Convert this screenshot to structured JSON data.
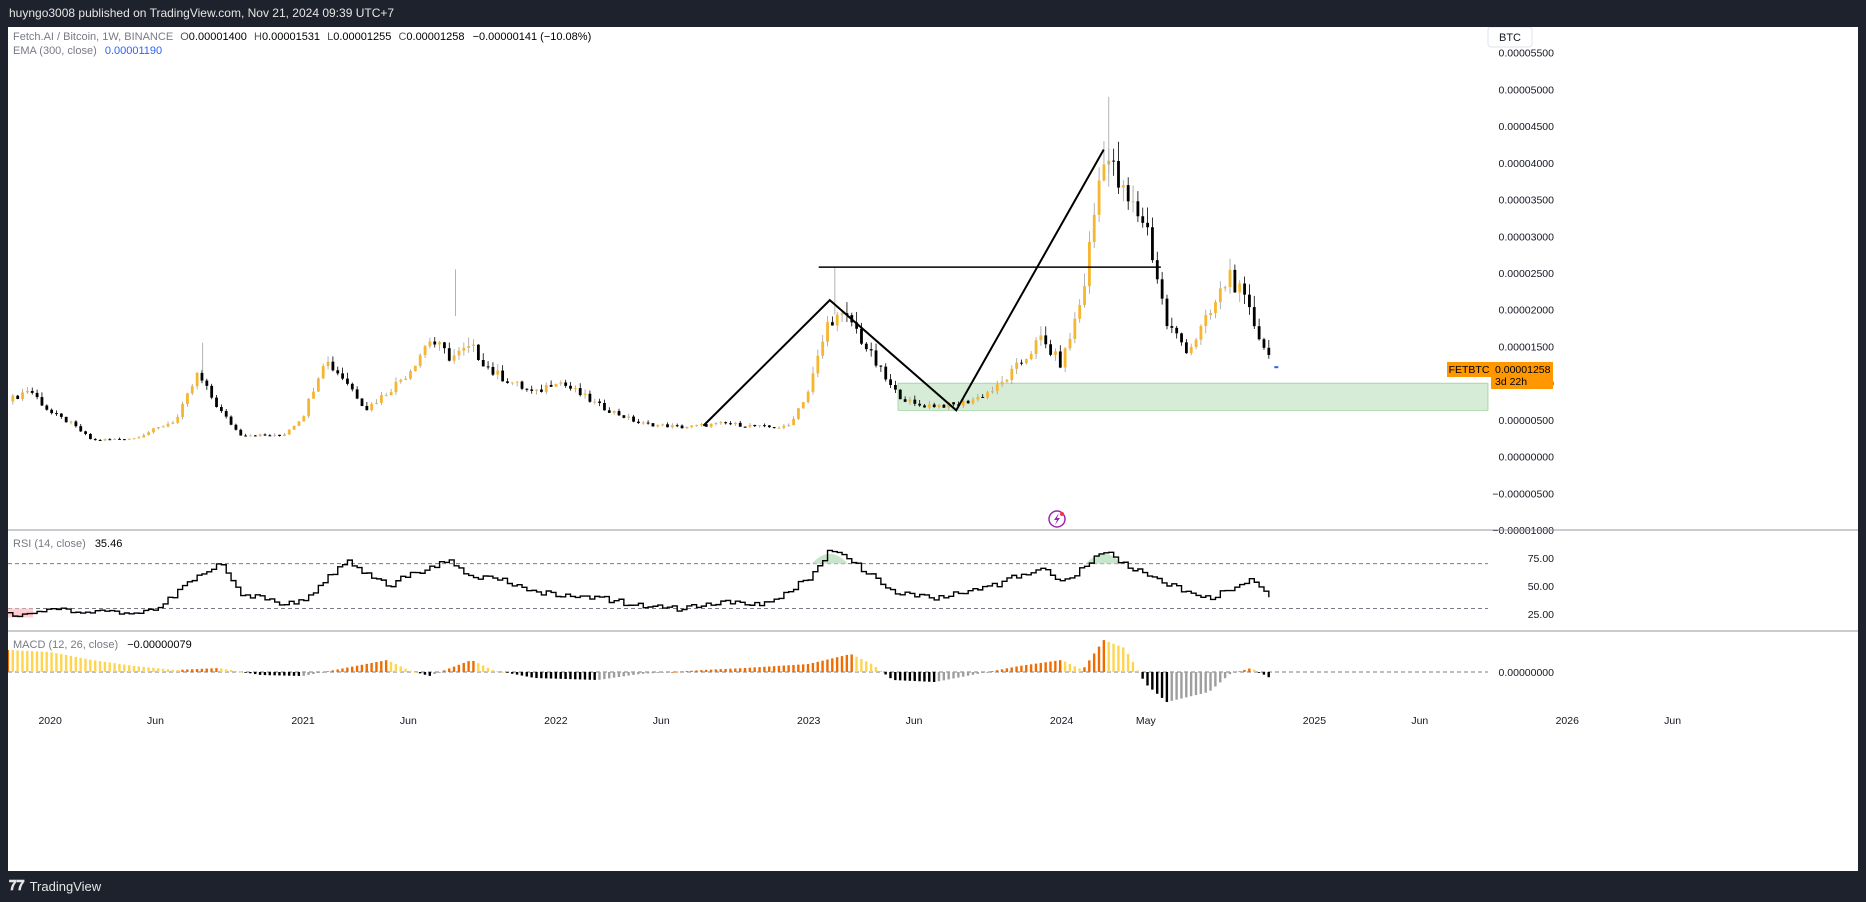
{
  "header": {
    "publish_line": "huyngo3008 published on TradingView.com, Nov 21, 2024 09:39 UTC+7"
  },
  "footer": {
    "brand": "TradingView"
  },
  "legend": {
    "symbol": "Fetch.AI / Bitcoin, 1W, BINANCE",
    "o_label": "O",
    "o_value": "0.00001400",
    "h_label": "H",
    "h_value": "0.00001531",
    "l_label": "L",
    "l_value": "0.00001255",
    "c_label": "C",
    "c_value": "0.00001258",
    "change": "−0.00000141 (−10.08%)",
    "ema_label": "EMA (300, close)",
    "ema_value": "0.00001190"
  },
  "currency_button": "BTC",
  "price_tag": {
    "symbol": "FETBTC",
    "price": "0.00001258",
    "countdown": "3d 22h"
  },
  "rsi_legend": {
    "label": "RSI (14, close)",
    "value": "35.46"
  },
  "macd_legend": {
    "label": "MACD (12, 26, close)",
    "value": "−0.00000079"
  },
  "colors": {
    "up": "#f7b62f",
    "down": "#000000",
    "accent": "#2962ff",
    "tag": "#ff9800",
    "zone": "#c8e6c9",
    "macd_pos": "#ef6c00",
    "macd_pos_light": "#ffd54f"
  },
  "chart_data": [
    {
      "type": "candlestick",
      "title": "Fetch.AI / Bitcoin, 1W, BINANCE",
      "price_axis_labels": [
        "0.00005500",
        "0.00005000",
        "0.00004500",
        "0.00004000",
        "0.00003500",
        "0.00003000",
        "0.00002500",
        "0.00002000",
        "0.00001500",
        "0.00001000",
        "0.00000500",
        "0.00000000",
        "−0.00000500",
        "−0.00001000"
      ],
      "time_axis_labels": [
        "2020",
        "Jun",
        "2021",
        "Jun",
        "2022",
        "Jun",
        "2023",
        "Jun",
        "2024",
        "May",
        "2025",
        "Jun",
        "2026",
        "Jun"
      ],
      "ylim": [
        -1e-05,
        5.85e-05
      ],
      "close_path": [
        [
          "2019-11",
          7.5e-06
        ],
        [
          "2019-12",
          9.2e-06
        ],
        [
          "2020-01",
          6e-06
        ],
        [
          "2020-02",
          4.5e-06
        ],
        [
          "2020-03",
          2.2e-06
        ],
        [
          "2020-05",
          2.5e-06
        ],
        [
          "2020-07",
          5e-06
        ],
        [
          "2020-08",
          1.12e-05
        ],
        [
          "2020-09",
          6.5e-06
        ],
        [
          "2020-10",
          3e-06
        ],
        [
          "2020-12",
          2.8e-06
        ],
        [
          "2021-01",
          5.5e-06
        ],
        [
          "2021-02",
          1.33e-05
        ],
        [
          "2021-03",
          1.05e-05
        ],
        [
          "2021-04",
          6.5e-06
        ],
        [
          "2021-05",
          8.8e-06
        ],
        [
          "2021-06",
          1.15e-05
        ],
        [
          "2021-07",
          1.6e-05
        ],
        [
          "2021-08",
          1.35e-05
        ],
        [
          "2021-09",
          1.48e-05
        ],
        [
          "2021-10",
          1.15e-05
        ],
        [
          "2021-12",
          8.5e-06
        ],
        [
          "2022-01",
          1.05e-05
        ],
        [
          "2022-03",
          7e-06
        ],
        [
          "2022-05",
          4.5e-06
        ],
        [
          "2022-07",
          4e-06
        ],
        [
          "2022-09",
          4.5e-06
        ],
        [
          "2022-11",
          4e-06
        ],
        [
          "2022-12",
          4e-06
        ],
        [
          "2023-01",
          9e-06
        ],
        [
          "2023-02",
          1.9e-05
        ],
        [
          "2023-03",
          1.85e-05
        ],
        [
          "2023-04",
          1.35e-05
        ],
        [
          "2023-05",
          9e-06
        ],
        [
          "2023-06",
          7e-06
        ],
        [
          "2023-08",
          7e-06
        ],
        [
          "2023-09",
          8e-06
        ],
        [
          "2023-10",
          9.5e-06
        ],
        [
          "2023-11",
          1.25e-05
        ],
        [
          "2023-12",
          1.6e-05
        ],
        [
          "2024-01",
          1.25e-05
        ],
        [
          "2024-02",
          2.2e-05
        ],
        [
          "2024-03",
          4.2e-05
        ],
        [
          "2024-04",
          3.5e-05
        ],
        [
          "2024-05",
          3.2e-05
        ],
        [
          "2024-06",
          1.8e-05
        ],
        [
          "2024-07",
          1.45e-05
        ],
        [
          "2024-08",
          1.9e-05
        ],
        [
          "2024-09",
          2.5e-05
        ],
        [
          "2024-10",
          1.9e-05
        ],
        [
          "2024-11",
          1.26e-05
        ]
      ],
      "last_price": 1.258e-05,
      "horizontal_line_price": 2.58e-05,
      "demand_zone": [
        6.3e-06,
        1e-05
      ],
      "trend_lines": [
        [
          [
            "2022-08",
            4.2e-06
          ],
          [
            "2023-02",
            2.13e-05
          ],
          [
            "2023-08",
            6.3e-06
          ],
          [
            "2024-03",
            4.18e-05
          ]
        ]
      ]
    },
    {
      "type": "line",
      "title": "RSI (14, close)",
      "axis_labels": [
        "75.00",
        "50.00",
        "25.00"
      ],
      "levels": [
        70,
        30
      ],
      "ylim": [
        10,
        100
      ],
      "points": [
        [
          "2019-11",
          24
        ],
        [
          "2020-01",
          28
        ],
        [
          "2020-04",
          27
        ],
        [
          "2020-06",
          29
        ],
        [
          "2020-08",
          60
        ],
        [
          "2020-09",
          70
        ],
        [
          "2020-10",
          44
        ],
        [
          "2020-12",
          34
        ],
        [
          "2021-01",
          36
        ],
        [
          "2021-03",
          73
        ],
        [
          "2021-05",
          50
        ],
        [
          "2021-06",
          60
        ],
        [
          "2021-08",
          73
        ],
        [
          "2021-09",
          55
        ],
        [
          "2021-10",
          58
        ],
        [
          "2021-12",
          44
        ],
        [
          "2022-03",
          40
        ],
        [
          "2022-05",
          32
        ],
        [
          "2022-07",
          30
        ],
        [
          "2022-09",
          36
        ],
        [
          "2022-11",
          34
        ],
        [
          "2023-01",
          58
        ],
        [
          "2023-02",
          82
        ],
        [
          "2023-03",
          72
        ],
        [
          "2023-05",
          44
        ],
        [
          "2023-07",
          40
        ],
        [
          "2023-09",
          48
        ],
        [
          "2023-10",
          52
        ],
        [
          "2023-11",
          60
        ],
        [
          "2023-12",
          66
        ],
        [
          "2024-01",
          52
        ],
        [
          "2024-03",
          82
        ],
        [
          "2024-04",
          68
        ],
        [
          "2024-05",
          60
        ],
        [
          "2024-07",
          44
        ],
        [
          "2024-08",
          40
        ],
        [
          "2024-10",
          56
        ],
        [
          "2024-11",
          35.46
        ]
      ],
      "last_value": 35.46
    },
    {
      "type": "bar",
      "title": "MACD (12, 26, close)",
      "axis_labels": [
        "0.00000000"
      ],
      "last_value": -7.9e-07,
      "histogram_profile": [
        [
          "2019-11",
          2.2e-06
        ],
        [
          "2020-01",
          2e-06
        ],
        [
          "2020-03",
          1.2e-06
        ],
        [
          "2020-05",
          6e-07
        ],
        [
          "2020-07",
          2e-07
        ],
        [
          "2020-09",
          4e-07
        ],
        [
          "2020-11",
          -3e-07
        ],
        [
          "2021-01",
          -4e-07
        ],
        [
          "2021-03",
          4e-07
        ],
        [
          "2021-05",
          1.2e-06
        ],
        [
          "2021-06",
          2e-07
        ],
        [
          "2021-07",
          -4e-07
        ],
        [
          "2021-09",
          1.2e-06
        ],
        [
          "2021-10",
          2e-07
        ],
        [
          "2021-12",
          -6e-07
        ],
        [
          "2022-03",
          -8e-07
        ],
        [
          "2022-05",
          -2e-07
        ],
        [
          "2022-08",
          2e-07
        ],
        [
          "2022-10",
          4e-07
        ],
        [
          "2023-01",
          8e-07
        ],
        [
          "2023-03",
          1.8e-06
        ],
        [
          "2023-04",
          8e-07
        ],
        [
          "2023-05",
          -8e-07
        ],
        [
          "2023-07",
          -1e-06
        ],
        [
          "2023-09",
          -2e-07
        ],
        [
          "2023-11",
          6e-07
        ],
        [
          "2024-01",
          1.2e-06
        ],
        [
          "2024-02",
          2e-07
        ],
        [
          "2024-03",
          3.2e-06
        ],
        [
          "2024-04",
          2.4e-06
        ],
        [
          "2024-05",
          -1.2e-06
        ],
        [
          "2024-06",
          -3e-06
        ],
        [
          "2024-08",
          -2e-06
        ],
        [
          "2024-09",
          -2e-07
        ],
        [
          "2024-10",
          4e-07
        ],
        [
          "2024-11",
          -7e-07
        ]
      ]
    }
  ]
}
